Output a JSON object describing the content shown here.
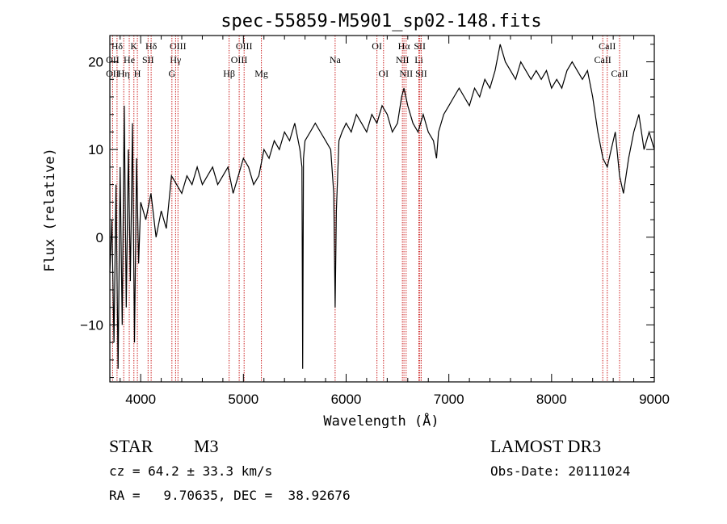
{
  "chart_data": {
    "type": "line",
    "title": "spec-55859-M5901_sp02-148.fits",
    "xlabel": "Wavelength (Å)",
    "ylabel": "Flux (relative)",
    "xlim": [
      3700,
      9000
    ],
    "ylim": [
      -16.5,
      23
    ],
    "xticks": [
      4000,
      5000,
      6000,
      7000,
      8000,
      9000
    ],
    "xtick_labels": [
      "4000",
      "5000",
      "6000",
      "7000",
      "8000",
      "9000"
    ],
    "yticks": [
      -10,
      0,
      10,
      20
    ],
    "ytick_labels": [
      "−10",
      "0",
      "10",
      "20"
    ],
    "lines_color": "#cc2222",
    "spectral_lines": [
      {
        "label": "Hδ",
        "wl": 3770,
        "row": 0
      },
      {
        "label": "K",
        "wl": 3934,
        "row": 0
      },
      {
        "label": "Hδ",
        "wl": 4102,
        "row": 0
      },
      {
        "label": "OIII",
        "wl": 4363,
        "row": 0
      },
      {
        "label": "OIII",
        "wl": 5007,
        "row": 0
      },
      {
        "label": "OI",
        "wl": 6300,
        "row": 0
      },
      {
        "label": "Hα",
        "wl": 6563,
        "row": 0
      },
      {
        "label": "SII",
        "wl": 6717,
        "row": 0
      },
      {
        "label": "CaII",
        "wl": 8542,
        "row": 0
      },
      {
        "label": "OII",
        "wl": 3727,
        "row": 1
      },
      {
        "label": "He",
        "wl": 3889,
        "row": 1
      },
      {
        "label": "SII",
        "wl": 4072,
        "row": 1
      },
      {
        "label": "Hγ",
        "wl": 4340,
        "row": 1
      },
      {
        "label": "OIII",
        "wl": 4959,
        "row": 1
      },
      {
        "label": "Na",
        "wl": 5893,
        "row": 1
      },
      {
        "label": "NII",
        "wl": 6548,
        "row": 1
      },
      {
        "label": "Li",
        "wl": 6708,
        "row": 1
      },
      {
        "label": "CaII",
        "wl": 8498,
        "row": 1
      },
      {
        "label": "OII",
        "wl": 3727,
        "row": 2
      },
      {
        "label": "Hη",
        "wl": 3835,
        "row": 2
      },
      {
        "label": "H",
        "wl": 3968,
        "row": 2
      },
      {
        "label": "G",
        "wl": 4304,
        "row": 2
      },
      {
        "label": "Hβ",
        "wl": 4861,
        "row": 2
      },
      {
        "label": "Mg",
        "wl": 5175,
        "row": 2
      },
      {
        "label": "OI",
        "wl": 6364,
        "row": 2
      },
      {
        "label": "NII",
        "wl": 6584,
        "row": 2
      },
      {
        "label": "SII",
        "wl": 6731,
        "row": 2
      },
      {
        "label": "CaII",
        "wl": 8662,
        "row": 2
      }
    ],
    "series": [
      {
        "name": "flux",
        "color": "#000000",
        "x": [
          3700,
          3720,
          3740,
          3760,
          3780,
          3800,
          3820,
          3840,
          3860,
          3880,
          3900,
          3920,
          3940,
          3960,
          3980,
          4000,
          4050,
          4100,
          4150,
          4200,
          4250,
          4300,
          4350,
          4400,
          4450,
          4500,
          4550,
          4600,
          4650,
          4700,
          4750,
          4800,
          4850,
          4900,
          4950,
          5000,
          5050,
          5100,
          5150,
          5200,
          5250,
          5300,
          5350,
          5400,
          5450,
          5500,
          5550,
          5570,
          5577,
          5585,
          5600,
          5650,
          5700,
          5750,
          5800,
          5850,
          5880,
          5893,
          5905,
          5930,
          5960,
          6000,
          6050,
          6100,
          6150,
          6200,
          6250,
          6300,
          6350,
          6400,
          6450,
          6500,
          6540,
          6563,
          6600,
          6650,
          6700,
          6750,
          6800,
          6850,
          6880,
          6900,
          6950,
          7000,
          7050,
          7100,
          7150,
          7200,
          7250,
          7300,
          7350,
          7400,
          7450,
          7500,
          7550,
          7600,
          7650,
          7700,
          7750,
          7800,
          7850,
          7900,
          7950,
          8000,
          8050,
          8100,
          8150,
          8200,
          8250,
          8300,
          8350,
          8400,
          8450,
          8500,
          8542,
          8580,
          8620,
          8662,
          8700,
          8750,
          8800,
          8850,
          8900,
          8950,
          9000
        ],
        "values": [
          -4,
          2,
          -12,
          6,
          -15,
          8,
          -10,
          15,
          -8,
          10,
          -5,
          13,
          -12,
          9,
          -3,
          4,
          2,
          5,
          0,
          3,
          1,
          7,
          6,
          5,
          7,
          6,
          8,
          6,
          7,
          8,
          6,
          7,
          8,
          5,
          7,
          9,
          8,
          6,
          7,
          10,
          9,
          11,
          10,
          12,
          11,
          13,
          10,
          8,
          -15,
          9,
          11,
          12,
          13,
          12,
          11,
          10,
          5,
          -8,
          3,
          11,
          12,
          13,
          12,
          14,
          13,
          12,
          14,
          13,
          15,
          14,
          12,
          13,
          16,
          17,
          15,
          13,
          12,
          14,
          12,
          11,
          9,
          12,
          14,
          15,
          16,
          17,
          16,
          15,
          17,
          16,
          18,
          17,
          19,
          22,
          20,
          19,
          18,
          20,
          19,
          18,
          19,
          18,
          19,
          17,
          18,
          17,
          19,
          20,
          19,
          18,
          19,
          16,
          12,
          9,
          8,
          10,
          12,
          7,
          5,
          9,
          12,
          14,
          10,
          12,
          10
        ]
      }
    ]
  },
  "info": {
    "object_type": "STAR",
    "subclass": "M3",
    "survey": "LAMOST DR3",
    "cz_line": "cz = 64.2 ± 33.3 km/s",
    "obs_date": "Obs-Date: 20111024",
    "radec_line": "RA =   9.70635, DEC =  38.92676"
  }
}
